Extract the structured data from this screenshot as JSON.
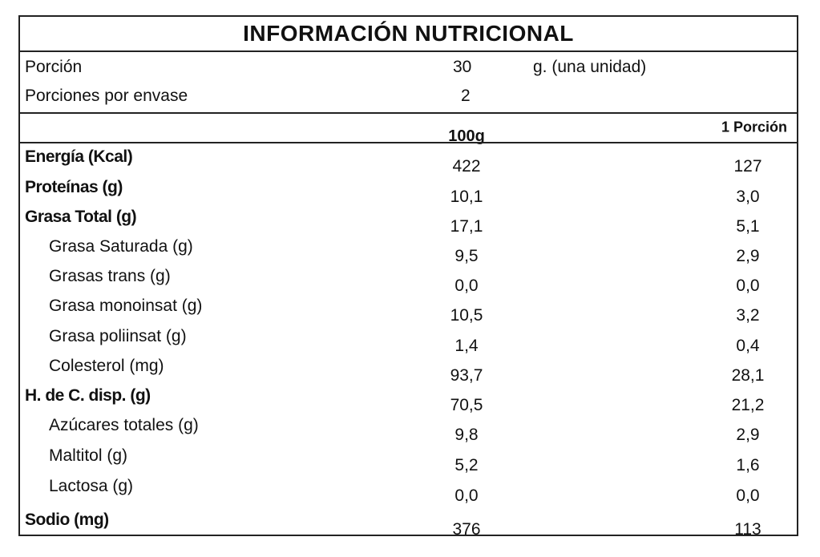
{
  "title": "INFORMACIÓN NUTRICIONAL",
  "serving": {
    "porcion_label": "Porción",
    "porcion_value": "30",
    "porcion_unit": "g. (una unidad)",
    "porciones_label": "Porciones por envase",
    "porciones_value": "2"
  },
  "columns": {
    "per_100": "100g",
    "per_portion": "1 Porción"
  },
  "nutrients": [
    {
      "label": "Energía (Kcal)",
      "per_100": "422",
      "per_portion": "127",
      "bold": true
    },
    {
      "label": "Proteínas (g)",
      "per_100": "10,1",
      "per_portion": "3,0",
      "bold": true
    },
    {
      "label": "Grasa Total (g)",
      "per_100": "17,1",
      "per_portion": "5,1",
      "bold": true
    },
    {
      "label": "Grasa Saturada (g)",
      "per_100": "9,5",
      "per_portion": "2,9",
      "bold": false
    },
    {
      "label": "Grasas trans (g)",
      "per_100": "0,0",
      "per_portion": "0,0",
      "bold": false
    },
    {
      "label": "Grasa monoinsat (g)",
      "per_100": "10,5",
      "per_portion": "3,2",
      "bold": false
    },
    {
      "label": "Grasa poliinsat (g)",
      "per_100": "1,4",
      "per_portion": "0,4",
      "bold": false
    },
    {
      "label": "Colesterol (mg)",
      "per_100": "93,7",
      "per_portion": "28,1",
      "bold": false
    },
    {
      "label": "H. de C. disp. (g)",
      "per_100": "70,5",
      "per_portion": "21,2",
      "bold": true
    },
    {
      "label": "Azúcares totales (g)",
      "per_100": "9,8",
      "per_portion": "2,9",
      "bold": false
    },
    {
      "label": "Maltitol (g)",
      "per_100": "5,2",
      "per_portion": "1,6",
      "bold": false
    },
    {
      "label": "Lactosa (g)",
      "per_100": "0,0",
      "per_portion": "0,0",
      "bold": false
    },
    {
      "label": "Sodio (mg)",
      "per_100": "376",
      "per_portion": "113",
      "bold": true
    }
  ]
}
